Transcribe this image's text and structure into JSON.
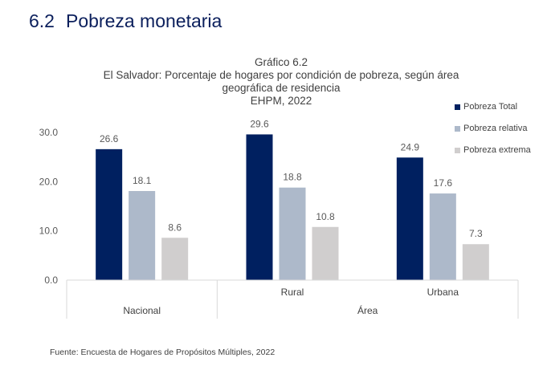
{
  "section": {
    "number": "6.2",
    "title": "Pobreza monetaria"
  },
  "chart_data": {
    "type": "bar",
    "title": "Gráfico 6.2",
    "subtitle_lines": [
      "El Salvador: Porcentaje de hogares por condición de pobreza, según área",
      "geográfica de residencia",
      "EHPM, 2022"
    ],
    "categories": [
      "Nacional",
      "Rural",
      "Urbana"
    ],
    "group_label": "Área",
    "series": [
      {
        "name": "Pobreza Total",
        "color": "#002060",
        "values": [
          26.6,
          29.6,
          24.9
        ]
      },
      {
        "name": "Pobreza relativa",
        "color": "#adb9ca",
        "values": [
          18.1,
          18.8,
          17.6
        ]
      },
      {
        "name": "Pobreza extrema",
        "color": "#d0cece",
        "values": [
          8.6,
          10.8,
          7.3
        ]
      }
    ],
    "ylim": [
      0,
      30
    ],
    "yticks": [
      "0.0",
      "10.0",
      "20.0",
      "30.0"
    ],
    "data_labels": [
      [
        "26.6",
        "18.1",
        "8.6"
      ],
      [
        "29.6",
        "18.8",
        "10.8"
      ],
      [
        "24.9",
        "17.6",
        "7.3"
      ]
    ],
    "legend_position": "right"
  },
  "source": "Fuente: Encuesta de Hogares de Propósitos Múltiples, 2022"
}
